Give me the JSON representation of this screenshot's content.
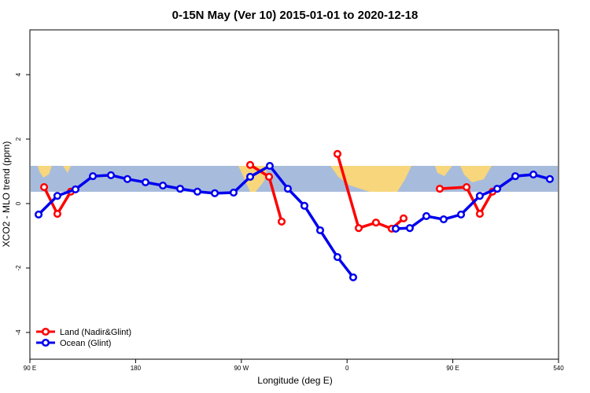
{
  "chart_data": {
    "type": "line",
    "title": "0-15N May (Ver 10)   2015-01-01 to 2020-12-18",
    "xlabel": "Longitude (deg E)",
    "ylabel": "XCO2 - MLO trend (ppm)",
    "xlim": [
      90,
      540
    ],
    "ylim": [
      -4.83,
      5.39
    ],
    "xticks": [
      {
        "value": 90,
        "label": "90 E"
      },
      180,
      {
        "value": 270,
        "label": "90 W"
      },
      {
        "value": 360,
        "label": "0"
      },
      {
        "value": 450,
        "label": "90 E"
      },
      540
    ],
    "yticks": [
      -4,
      -2,
      0,
      2,
      4
    ],
    "legend": "bottom-left",
    "series": [
      {
        "name": "Land (Nadir&Glint)",
        "color": "#ff0000",
        "x": [
          102.1,
          113.4,
          124.8,
          null,
          277.5,
          293.6,
          304.3,
          null,
          351.8,
          369.9,
          384.6,
          398.0,
          408.1,
          null,
          438.9,
          461.7,
          473.0,
          483.8
        ],
        "values": [
          0.51,
          -0.32,
          0.37,
          null,
          1.2,
          0.83,
          -0.56,
          null,
          1.54,
          -0.76,
          -0.59,
          -0.78,
          -0.46,
          null,
          0.46,
          0.51,
          -0.32,
          0.37
        ]
      },
      {
        "name": "Ocean (Glint)",
        "color": "#0000ee",
        "x": [
          97.4,
          113.4,
          128.8,
          143.6,
          159.0,
          173.0,
          188.4,
          203.2,
          217.9,
          232.6,
          247.4,
          263.4,
          277.5,
          294.2,
          309.6,
          323.7,
          337.1,
          351.8,
          365.2,
          null,
          401.4,
          413.4,
          427.5,
          442.2,
          457.0,
          473.0,
          487.8,
          503.2,
          518.6,
          532.6
        ],
        "values": [
          -0.34,
          0.24,
          0.44,
          0.85,
          0.88,
          0.76,
          0.66,
          0.56,
          0.46,
          0.37,
          0.32,
          0.34,
          0.83,
          1.17,
          0.46,
          -0.07,
          -0.83,
          -1.66,
          -2.29,
          null,
          -0.78,
          -0.76,
          -0.39,
          -0.49,
          -0.34,
          0.24,
          0.46,
          0.85,
          0.9,
          0.76
        ]
      }
    ]
  }
}
